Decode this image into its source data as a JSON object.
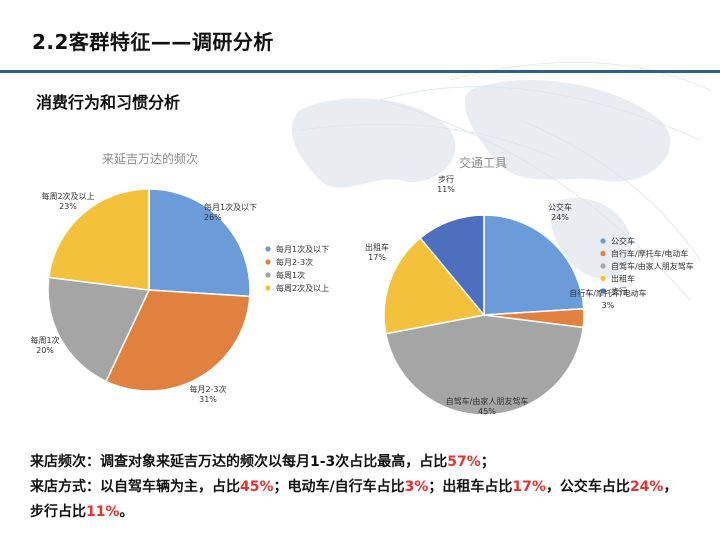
{
  "header": {
    "title": "2.2客群特征——调研分析"
  },
  "section": {
    "subtitle": "消费行为和习惯分析"
  },
  "colors": {
    "blue": "#6b9bd8",
    "orange": "#e0813f",
    "gray": "#a5a5a5",
    "yellow": "#f4c13c",
    "darkblue": "#4e6fbf",
    "highlight": "#e8312f",
    "title_rule": "#2e5f8a"
  },
  "chart_data": [
    {
      "type": "pie",
      "title": "来延吉万达的频次",
      "categories": [
        "每月1次及以下",
        "每月2-3次",
        "每周1次",
        "每周2次及以上"
      ],
      "values": [
        26,
        31,
        20,
        23
      ],
      "value_labels": [
        "26%",
        "31%",
        "20%",
        "23%"
      ],
      "colors": [
        "#6b9bd8",
        "#e0813f",
        "#a5a5a5",
        "#f4c13c"
      ],
      "legend": "right"
    },
    {
      "type": "pie",
      "title": "交通工具",
      "categories": [
        "公交车",
        "自行车/摩托车/电动车",
        "自驾车/由家人朋友驾车",
        "出租车",
        "步行"
      ],
      "values": [
        24,
        3,
        45,
        17,
        11
      ],
      "value_labels": [
        "24%",
        "3%",
        "45%",
        "17%",
        "11%"
      ],
      "colors": [
        "#6b9bd8",
        "#e0813f",
        "#a5a5a5",
        "#f4c13c",
        "#4e6fbf"
      ],
      "legend": "right"
    }
  ],
  "conclusion": {
    "freq_label": "来店频次：",
    "freq_text": "调查对象来延吉万达的频次以每月1-3次占比最高，占比",
    "freq_value": "57%",
    "freq_end": "；",
    "mode_label": "来店方式：",
    "mode_text1": "以自驾车辆为主，占比",
    "mode_value1": "45%",
    "mode_text2": "；电动车/自行车占比",
    "mode_value2": "3%",
    "mode_text3": "；出租车占比",
    "mode_value3": "17%",
    "mode_text4": "，公交车占比",
    "mode_value4": "24%",
    "mode_text5": "，步行占比",
    "mode_value5": "11%",
    "mode_end": "。"
  }
}
